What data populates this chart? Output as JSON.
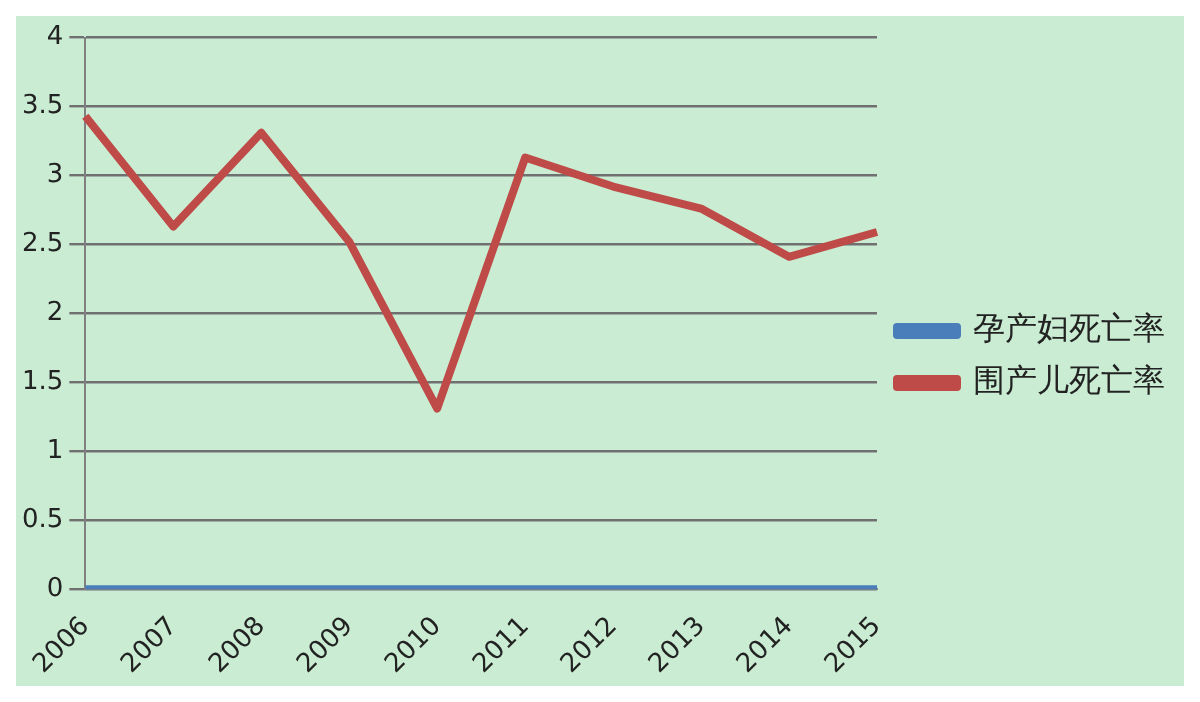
{
  "chart_data": {
    "type": "line",
    "categories": [
      "2006",
      "2007",
      "2008",
      "2009",
      "2010",
      "2011",
      "2012",
      "2013",
      "2014",
      "2015"
    ],
    "series": [
      {
        "name": "孕产妇死亡率",
        "color": "#4a7ebb",
        "values": [
          0,
          0,
          0,
          0,
          0,
          0,
          0,
          0,
          0,
          0
        ]
      },
      {
        "name": "围产儿死亡率",
        "color": "#be4b48",
        "values": [
          3.43,
          2.63,
          3.31,
          2.52,
          1.31,
          3.13,
          2.92,
          2.76,
          2.41,
          2.59
        ]
      }
    ],
    "ylim": [
      0,
      4
    ],
    "yticks": [
      0,
      0.5,
      1,
      1.5,
      2,
      2.5,
      3,
      3.5,
      4
    ],
    "grid": "y",
    "legend": "right",
    "marker": "none",
    "line_style": "solid"
  }
}
